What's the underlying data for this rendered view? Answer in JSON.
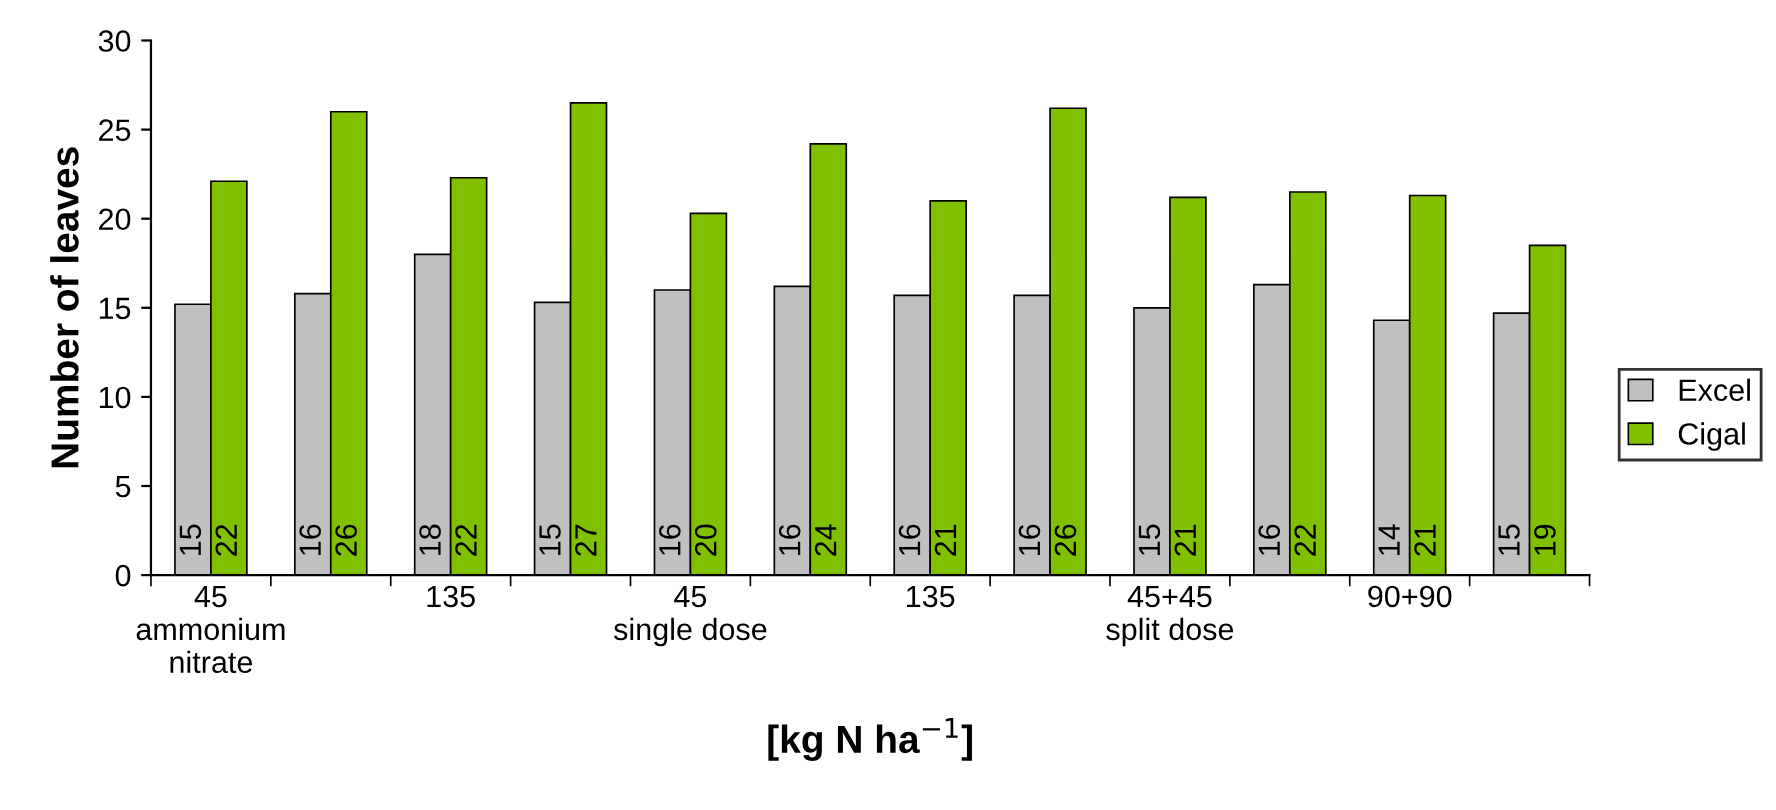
{
  "chart_data": {
    "type": "bar",
    "ylabel": "Number of leaves",
    "xlabel": "[kg N ha$^{−1}$]",
    "categories": [
      "45\nammonium\nnitrate",
      null,
      "135",
      null,
      "45\nsingle dose",
      null,
      "135",
      null,
      "45+45\nsplit dose",
      null,
      "90+90",
      null
    ],
    "series": [
      {
        "name": "Excel",
        "color": "#c0c0c0",
        "values": [
          15.2,
          15.8,
          18.0,
          15.3,
          16.0,
          16.2,
          15.7,
          15.7,
          15.0,
          16.3,
          14.3,
          14.7
        ],
        "value_labels": [
          "15",
          "16",
          "18",
          "15",
          "16",
          "16",
          "16",
          "16",
          "15",
          "16",
          "14",
          "15"
        ]
      },
      {
        "name": "Cigal",
        "color": "#80c000",
        "values": [
          22.1,
          26.0,
          22.3,
          26.5,
          20.3,
          24.2,
          21.0,
          26.2,
          21.2,
          21.5,
          21.3,
          18.5
        ],
        "value_labels": [
          "22",
          "26",
          "22",
          "27",
          "20",
          "24",
          "21",
          "26",
          "21",
          "22",
          "21",
          "19"
        ]
      }
    ],
    "ylim": [
      0,
      30
    ],
    "yticks": [
      0,
      5,
      10,
      15,
      20,
      25,
      30
    ],
    "grid": false,
    "legend": "right"
  }
}
